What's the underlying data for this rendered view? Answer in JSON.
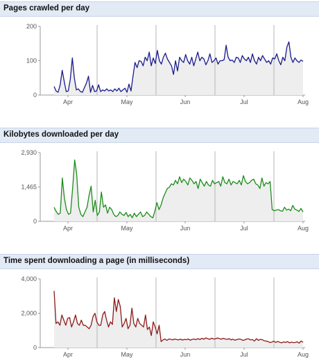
{
  "chart_data": [
    {
      "type": "area",
      "title": "Pages crawled per day",
      "x_ticks": [
        "Apr",
        "May",
        "Jun",
        "Jul",
        "Aug"
      ],
      "y_ticks": [
        "0",
        "100",
        "200"
      ],
      "ylim": [
        0,
        200
      ],
      "line_color": "#1a1a8c",
      "fill_color": "#eeeeee",
      "values": [
        25,
        12,
        8,
        30,
        72,
        40,
        10,
        12,
        45,
        108,
        50,
        15,
        18,
        10,
        8,
        22,
        35,
        55,
        8,
        28,
        10,
        12,
        30,
        10,
        15,
        12,
        18,
        12,
        15,
        10,
        18,
        12,
        20,
        10,
        15,
        20,
        8,
        32,
        12,
        55,
        95,
        80,
        100,
        98,
        85,
        110,
        100,
        125,
        85,
        108,
        92,
        130,
        100,
        90,
        110,
        122,
        105,
        95,
        85,
        60,
        100,
        70,
        110,
        100,
        95,
        118,
        100,
        90,
        110,
        85,
        105,
        125,
        100,
        110,
        105,
        88,
        100,
        120,
        95,
        100,
        108,
        90,
        100,
        100,
        103,
        145,
        110,
        100,
        102,
        95,
        110,
        108,
        95,
        115,
        105,
        100,
        110,
        95,
        120,
        100,
        90,
        110,
        100,
        115,
        105,
        95,
        100,
        90,
        108,
        105,
        120,
        100,
        88,
        110,
        100,
        140,
        155,
        110,
        95,
        108,
        100,
        95,
        102,
        98
      ]
    },
    {
      "type": "area",
      "title": "Kilobytes downloaded per day",
      "x_ticks": [
        "Apr",
        "May",
        "Jun",
        "Jul",
        "Aug"
      ],
      "y_ticks": [
        "0",
        "1,465",
        "2,930"
      ],
      "ylim": [
        0,
        2930
      ],
      "line_color": "#1a8c1a",
      "fill_color": "#eeeeee",
      "values": [
        600,
        420,
        300,
        350,
        1850,
        1000,
        500,
        300,
        350,
        1400,
        2620,
        2000,
        600,
        300,
        200,
        400,
        600,
        1100,
        1500,
        400,
        900,
        250,
        400,
        1250,
        600,
        700,
        350,
        600,
        500,
        300,
        200,
        250,
        400,
        300,
        250,
        380,
        200,
        300,
        150,
        350,
        200,
        300,
        400,
        200,
        250,
        400,
        300,
        200,
        150,
        450,
        800,
        500,
        700,
        1000,
        1200,
        1400,
        1450,
        1600,
        1550,
        1750,
        1600,
        1900,
        1650,
        1800,
        1700,
        1550,
        1850,
        1750,
        1600,
        1700,
        1400,
        1800,
        1650,
        1500,
        1700,
        1550,
        1500,
        1750,
        1600,
        1650,
        1700,
        1500,
        1900,
        1650,
        1600,
        1800,
        1550,
        1700,
        1650,
        1600,
        1750,
        1550,
        1950,
        1700,
        1600,
        1650,
        1750,
        1800,
        1600,
        1550,
        1400,
        1850,
        1500,
        1650,
        1600,
        1700,
        500,
        450,
        480,
        500,
        450,
        430,
        600,
        480,
        520,
        450,
        680,
        520,
        480,
        420,
        550,
        400
      ]
    },
    {
      "type": "area",
      "title": "Time spent downloading a page (in milliseconds)",
      "x_ticks": [
        "Apr",
        "May",
        "Jun",
        "Jul",
        "Aug"
      ],
      "y_ticks": [
        "0",
        "2,000",
        "4,000"
      ],
      "ylim": [
        0,
        4000
      ],
      "line_color": "#8c1a1a",
      "fill_color": "#eeeeee",
      "values": [
        3300,
        1400,
        1500,
        1300,
        1900,
        1600,
        1300,
        1700,
        1750,
        1200,
        1500,
        1900,
        1400,
        1300,
        1600,
        1300,
        1300,
        1200,
        1100,
        1300,
        1800,
        2000,
        1500,
        1300,
        1300,
        1900,
        2100,
        1600,
        1200,
        1500,
        1350,
        2900,
        2100,
        2800,
        2400,
        1200,
        1400,
        1700,
        1100,
        1300,
        2300,
        1400,
        1200,
        1700,
        1400,
        1300,
        1200,
        1900,
        1050,
        1200,
        700,
        1500,
        1200,
        800,
        1300,
        350,
        450,
        500,
        420,
        500,
        480,
        450,
        500,
        470,
        450,
        490,
        440,
        480,
        460,
        500,
        430,
        480,
        500,
        460,
        520,
        470,
        540,
        490,
        560,
        520,
        480,
        550,
        500,
        510,
        560,
        520,
        490,
        540,
        500,
        480,
        520,
        450,
        490,
        430,
        470,
        500,
        480,
        420,
        450,
        500,
        510,
        450,
        470,
        380,
        520,
        420,
        480,
        460,
        400,
        380,
        350,
        300,
        320,
        380,
        300,
        360,
        310,
        280,
        330,
        300,
        350,
        280,
        320,
        290,
        300,
        340,
        260,
        380,
        310
      ]
    }
  ]
}
